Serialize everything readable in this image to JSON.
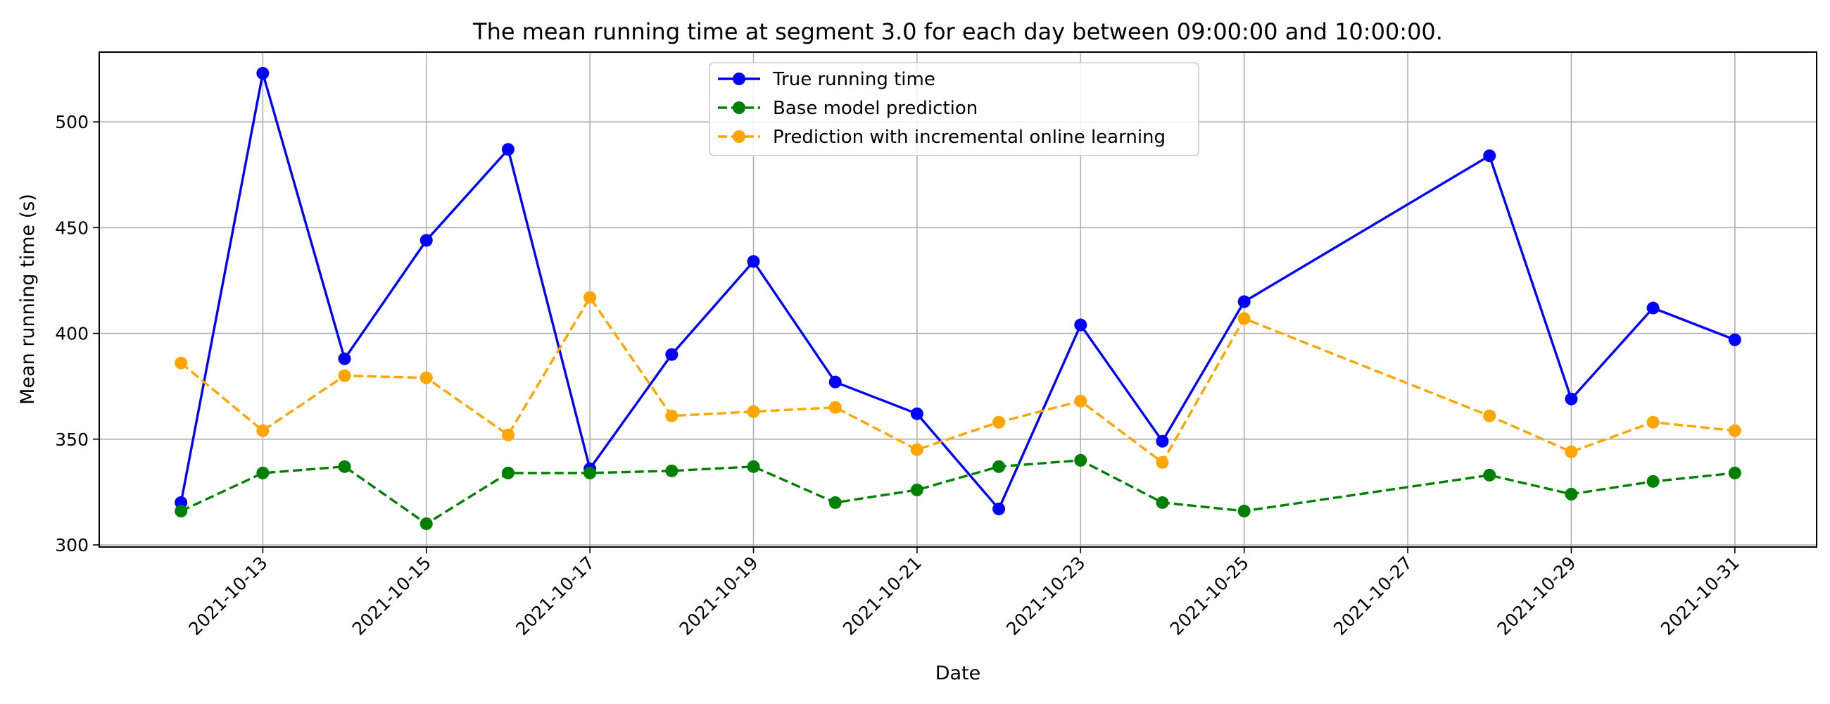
{
  "chart_data": {
    "type": "line",
    "title": "The mean running time at segment 3.0 for each day between 09:00:00 and 10:00:00.",
    "xlabel": "Date",
    "ylabel": "Mean running time (s)",
    "x_range": [
      "2021-10-11",
      "2021-11-01"
    ],
    "ylim": [
      299,
      533
    ],
    "grid": true,
    "legend_position": "top-center",
    "x_ticks": [
      "2021-10-13",
      "2021-10-15",
      "2021-10-17",
      "2021-10-19",
      "2021-10-21",
      "2021-10-23",
      "2021-10-25",
      "2021-10-27",
      "2021-10-29",
      "2021-10-31"
    ],
    "y_ticks": [
      300,
      350,
      400,
      450,
      500
    ],
    "x": [
      "2021-10-12",
      "2021-10-13",
      "2021-10-14",
      "2021-10-15",
      "2021-10-16",
      "2021-10-17",
      "2021-10-18",
      "2021-10-19",
      "2021-10-20",
      "2021-10-21",
      "2021-10-22",
      "2021-10-23",
      "2021-10-24",
      "2021-10-25",
      "2021-10-28",
      "2021-10-29",
      "2021-10-30",
      "2021-10-31"
    ],
    "series": [
      {
        "name": "True running time",
        "color": "#0000ff",
        "dashed": false,
        "values": [
          320,
          523,
          388,
          444,
          487,
          336,
          390,
          434,
          377,
          362,
          317,
          404,
          349,
          415,
          484,
          369,
          412,
          397
        ]
      },
      {
        "name": "Base model prediction",
        "color": "#008000",
        "dashed": true,
        "values": [
          316,
          334,
          337,
          310,
          334,
          334,
          335,
          337,
          320,
          326,
          337,
          340,
          320,
          316,
          333,
          324,
          330,
          334
        ]
      },
      {
        "name": "Prediction with incremental online learning",
        "color": "#ffa500",
        "dashed": true,
        "values": [
          386,
          354,
          380,
          379,
          352,
          417,
          361,
          363,
          365,
          345,
          358,
          368,
          339,
          407,
          361,
          344,
          358,
          354
        ]
      }
    ]
  }
}
